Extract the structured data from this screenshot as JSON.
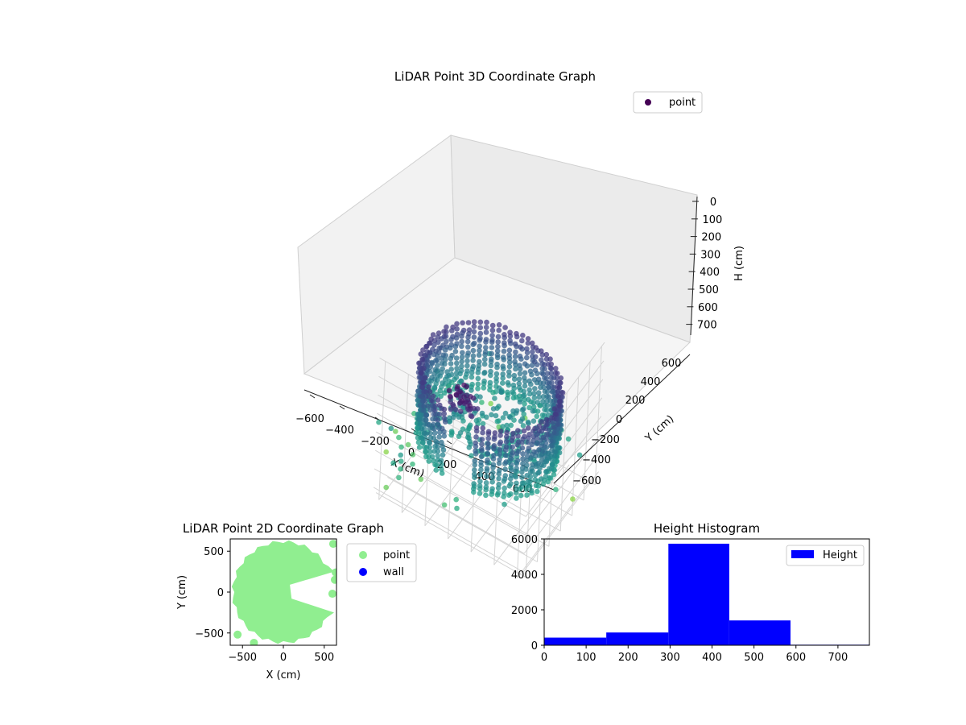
{
  "chart_data": [
    {
      "type": "scatter3d",
      "title": "LiDAR Point 3D Coordinate Graph",
      "xlabel": "X (cm)",
      "ylabel": "Y (cm)",
      "zlabel": "H (cm)",
      "xlim": [
        -650,
        650
      ],
      "ylim": [
        -650,
        650
      ],
      "zlim": [
        0,
        750
      ],
      "z_axis_inverted": true,
      "x_ticks": [
        "−600",
        "−400",
        "−200",
        "0",
        "200",
        "400",
        "600"
      ],
      "y_ticks": [
        "−600",
        "−400",
        "−200",
        "0",
        "200",
        "400",
        "600"
      ],
      "z_ticks": [
        "0",
        "100",
        "200",
        "300",
        "400",
        "500",
        "600",
        "700"
      ],
      "colormap": "viridis (by height)",
      "legend": {
        "position": "top-right",
        "entries": [
          {
            "label": "point",
            "color": "#440154"
          }
        ]
      },
      "series": [
        {
          "name": "point",
          "shape": "ring",
          "ring_radius_range": [
            450,
            650
          ],
          "height_range": [
            150,
            500
          ],
          "opening_direction": "+x (missing arc on the right side)",
          "note": "dense ring of points with sparse outliers at larger radius / greater height"
        }
      ]
    },
    {
      "type": "scatter",
      "title": "LiDAR Point 2D Coordinate Graph",
      "xlabel": "X (cm)",
      "ylabel": "Y (cm)",
      "xlim": [
        -650,
        650
      ],
      "ylim": [
        -650,
        650
      ],
      "x_ticks": [
        "−500",
        "0",
        "500"
      ],
      "y_ticks": [
        "−500",
        "0",
        "500"
      ],
      "legend": {
        "position": "outside-right",
        "entries": [
          {
            "label": "point",
            "color": "#90ee90"
          },
          {
            "label": "wall",
            "color": "#0000ff"
          }
        ]
      }
    },
    {
      "type": "histogram",
      "title": "Height Histogram",
      "xlabel": "",
      "ylabel": "",
      "xlim": [
        0,
        775
      ],
      "ylim": [
        0,
        6000
      ],
      "x_ticks": [
        "0",
        "100",
        "200",
        "300",
        "400",
        "500",
        "600",
        "700"
      ],
      "y_ticks": [
        "0",
        "2000",
        "4000",
        "6000"
      ],
      "bins": [
        {
          "start": 0,
          "end": 148,
          "count": 430
        },
        {
          "start": 148,
          "end": 296,
          "count": 720
        },
        {
          "start": 296,
          "end": 441,
          "count": 5730
        },
        {
          "start": 441,
          "end": 587,
          "count": 1400
        },
        {
          "start": 587,
          "end": 775,
          "count": 30
        }
      ],
      "color": "#0000ff",
      "legend": {
        "position": "top-right",
        "entries": [
          {
            "label": "Height",
            "color": "#0000ff"
          }
        ]
      }
    }
  ]
}
